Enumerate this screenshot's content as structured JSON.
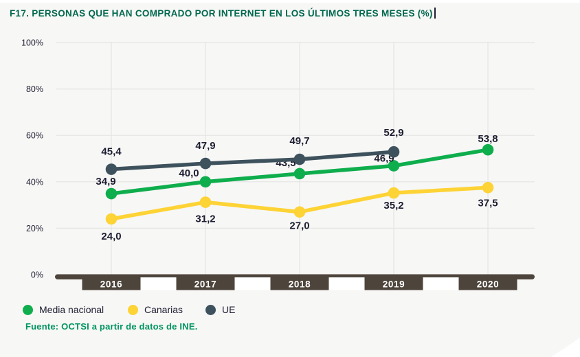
{
  "title": "F17. PERSONAS QUE HAN COMPRADO POR INTERNET EN LOS ÚLTIMOS TRES MESES (%)",
  "source": "Fuente: OCTSI a partir de datos de INE.",
  "colors": {
    "background": "#f7f7f6",
    "title_green": "#00684d",
    "source_green": "#009560",
    "axis_brown": "#4d443b",
    "grid": "#e4e4e2",
    "label_ink": "#1e1e32",
    "media_nacional": "#0fae4d",
    "canarias": "#fdd335",
    "ue": "#3e525d"
  },
  "chart_data": {
    "type": "line",
    "title": "F17. PERSONAS QUE HAN COMPRADO POR INTERNET EN LOS ÚLTIMOS TRES MESES (%)",
    "categories": [
      "2016",
      "2017",
      "2018",
      "2019",
      "2020"
    ],
    "series": [
      {
        "name": "Media nacional",
        "color_key": "media_nacional",
        "values": [
          34.9,
          40.0,
          43.5,
          46.9,
          53.8
        ],
        "labels": [
          "34,9",
          "40,0",
          "43,5",
          "46,9",
          "53,8"
        ],
        "label_side": "above"
      },
      {
        "name": "Canarias",
        "color_key": "canarias",
        "values": [
          24.0,
          31.2,
          27.0,
          35.2,
          37.5
        ],
        "labels": [
          "24,0",
          "31,2",
          "27,0",
          "35,2",
          "37,5"
        ],
        "label_side": "below"
      },
      {
        "name": "UE",
        "color_key": "ue",
        "values": [
          45.4,
          47.9,
          49.7,
          52.9
        ],
        "labels": [
          "45,4",
          "47,9",
          "49,7",
          "52,9"
        ],
        "label_side": "above"
      }
    ],
    "y_axis": {
      "ticks": [
        "0%",
        "20%",
        "40%",
        "60%",
        "80%",
        "100%"
      ],
      "min": 0,
      "max": 100
    },
    "ylim": [
      0,
      100
    ],
    "grid": true,
    "legend_position": "bottom",
    "label_offsets": {
      "Media nacional": [
        [
          -8,
          -13
        ],
        [
          -24,
          -8
        ],
        [
          -20,
          -11
        ],
        [
          -14,
          -6
        ],
        [
          0,
          -11
        ]
      ],
      "Canarias": [
        [
          0,
          30
        ],
        [
          0,
          29
        ],
        [
          0,
          25
        ],
        [
          0,
          23
        ],
        [
          0,
          27
        ]
      ],
      "UE": [
        [
          0,
          -21
        ],
        [
          0,
          -21
        ],
        [
          0,
          -22
        ],
        [
          0,
          -23
        ]
      ]
    }
  }
}
